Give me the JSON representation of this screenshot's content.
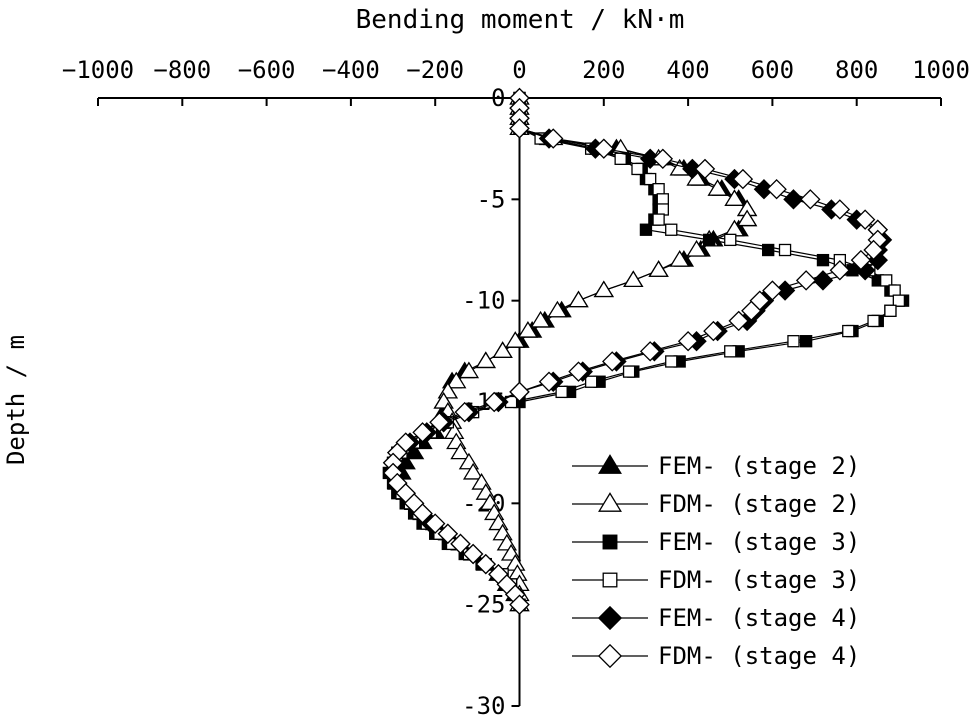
{
  "chart_data": {
    "type": "line",
    "title": "",
    "xlabel": "Bending moment / kN·m",
    "ylabel": "Depth / m",
    "x_axis_position": "top",
    "xlim": [
      -1000,
      1000
    ],
    "ylim": [
      -30,
      0
    ],
    "x_ticks": [
      -1000,
      -800,
      -600,
      -400,
      -200,
      0,
      200,
      400,
      600,
      800,
      1000
    ],
    "x_tick_labels": [
      "−1000",
      "−800",
      "−600",
      "−400",
      "−200",
      "0",
      "200",
      "400",
      "600",
      "800",
      "1000"
    ],
    "y_ticks": [
      0,
      -5,
      -10,
      -15,
      -20,
      -25,
      -30
    ],
    "y_tick_labels": [
      "0",
      "-5",
      "-10",
      "-15",
      "-20",
      "-25",
      "-30"
    ],
    "grid": false,
    "legend_position": "bottom-right",
    "series": [
      {
        "name": "FEM- (stage 2)",
        "marker": "triangle",
        "filled": true,
        "points": [
          [
            0,
            0
          ],
          [
            0,
            -0.5
          ],
          [
            0,
            -1
          ],
          [
            0,
            -1.5
          ],
          [
            70,
            -2
          ],
          [
            230,
            -2.5
          ],
          [
            340,
            -3
          ],
          [
            390,
            -3.5
          ],
          [
            430,
            -4
          ],
          [
            480,
            -4.5
          ],
          [
            520,
            -5
          ],
          [
            540,
            -5.5
          ],
          [
            540,
            -6
          ],
          [
            520,
            -6.5
          ],
          [
            460,
            -7
          ],
          [
            430,
            -7.5
          ],
          [
            390,
            -8
          ],
          [
            330,
            -8.5
          ],
          [
            270,
            -9
          ],
          [
            200,
            -9.5
          ],
          [
            140,
            -10
          ],
          [
            100,
            -10.5
          ],
          [
            60,
            -11
          ],
          [
            30,
            -11.5
          ],
          [
            0,
            -12
          ],
          [
            -40,
            -12.5
          ],
          [
            -80,
            -13
          ],
          [
            -130,
            -13.5
          ],
          [
            -160,
            -14
          ],
          [
            -170,
            -14.5
          ],
          [
            -180,
            -15
          ],
          [
            -180,
            -15.5
          ],
          [
            -190,
            -16
          ],
          [
            -200,
            -16.5
          ],
          [
            -230,
            -17
          ],
          [
            -250,
            -17.5
          ],
          [
            -270,
            -18
          ],
          [
            -280,
            -18.5
          ],
          [
            -290,
            -19
          ],
          [
            -270,
            -19.5
          ],
          [
            -250,
            -20
          ],
          [
            -230,
            -20.5
          ],
          [
            -200,
            -21
          ],
          [
            -170,
            -21.5
          ],
          [
            -140,
            -22
          ],
          [
            -110,
            -22.5
          ],
          [
            -80,
            -23
          ],
          [
            -50,
            -23.5
          ],
          [
            -30,
            -24
          ],
          [
            -10,
            -24.5
          ],
          [
            0,
            -25
          ]
        ]
      },
      {
        "name": "FDM- (stage 2)",
        "marker": "triangle",
        "filled": false,
        "points": [
          [
            0,
            0
          ],
          [
            0,
            -0.5
          ],
          [
            0,
            -1
          ],
          [
            0,
            -1.5
          ],
          [
            80,
            -2
          ],
          [
            240,
            -2.5
          ],
          [
            330,
            -3
          ],
          [
            380,
            -3.5
          ],
          [
            420,
            -4
          ],
          [
            470,
            -4.5
          ],
          [
            510,
            -5
          ],
          [
            540,
            -5.5
          ],
          [
            540,
            -6
          ],
          [
            510,
            -6.5
          ],
          [
            450,
            -7
          ],
          [
            420,
            -7.5
          ],
          [
            380,
            -8
          ],
          [
            330,
            -8.5
          ],
          [
            270,
            -9
          ],
          [
            200,
            -9.5
          ],
          [
            140,
            -10
          ],
          [
            90,
            -10.5
          ],
          [
            50,
            -11
          ],
          [
            20,
            -11.5
          ],
          [
            -10,
            -12
          ],
          [
            -40,
            -12.5
          ],
          [
            -80,
            -13
          ],
          [
            -120,
            -13.5
          ],
          [
            -150,
            -14
          ],
          [
            -170,
            -14.5
          ],
          [
            -180,
            -15
          ],
          [
            -170,
            -15.5
          ],
          [
            -160,
            -16
          ],
          [
            -155,
            -16.5
          ],
          [
            -150,
            -17
          ],
          [
            -140,
            -17.5
          ],
          [
            -120,
            -18
          ],
          [
            -110,
            -18.5
          ],
          [
            -90,
            -19
          ],
          [
            -80,
            -19.5
          ],
          [
            -70,
            -20
          ],
          [
            -60,
            -20.5
          ],
          [
            -50,
            -21
          ],
          [
            -40,
            -21.5
          ],
          [
            -30,
            -22
          ],
          [
            -20,
            -22.5
          ],
          [
            -10,
            -23
          ],
          [
            -5,
            -23.5
          ],
          [
            0,
            -24
          ],
          [
            0,
            -24.5
          ],
          [
            0,
            -25
          ]
        ]
      },
      {
        "name": "FEM- (stage 3)",
        "marker": "square",
        "filled": true,
        "points": [
          [
            0,
            0
          ],
          [
            0,
            -0.5
          ],
          [
            0,
            -1
          ],
          [
            0,
            -1.5
          ],
          [
            60,
            -2
          ],
          [
            180,
            -2.5
          ],
          [
            250,
            -3
          ],
          [
            290,
            -3.5
          ],
          [
            300,
            -4
          ],
          [
            320,
            -4.5
          ],
          [
            330,
            -5
          ],
          [
            330,
            -5.5
          ],
          [
            320,
            -6
          ],
          [
            300,
            -6.5
          ],
          [
            450,
            -7
          ],
          [
            590,
            -7.5
          ],
          [
            720,
            -8
          ],
          [
            790,
            -8.5
          ],
          [
            850,
            -9
          ],
          [
            880,
            -9.5
          ],
          [
            910,
            -10
          ],
          [
            880,
            -10.5
          ],
          [
            850,
            -11
          ],
          [
            790,
            -11.5
          ],
          [
            680,
            -12
          ],
          [
            520,
            -12.5
          ],
          [
            380,
            -13
          ],
          [
            270,
            -13.5
          ],
          [
            190,
            -14
          ],
          [
            120,
            -14.5
          ],
          [
            0,
            -15
          ],
          [
            -120,
            -15.5
          ],
          [
            -180,
            -16
          ],
          [
            -220,
            -16.5
          ],
          [
            -260,
            -17
          ],
          [
            -290,
            -17.5
          ],
          [
            -300,
            -18
          ],
          [
            -310,
            -18.5
          ],
          [
            -300,
            -19
          ],
          [
            -290,
            -19.5
          ],
          [
            -270,
            -20
          ],
          [
            -250,
            -20.5
          ],
          [
            -230,
            -21
          ],
          [
            -200,
            -21.5
          ],
          [
            -170,
            -22
          ],
          [
            -130,
            -22.5
          ],
          [
            -90,
            -23
          ],
          [
            -50,
            -23.5
          ],
          [
            -20,
            -24
          ],
          [
            -10,
            -24.5
          ],
          [
            0,
            -25
          ]
        ]
      },
      {
        "name": "FDM- (stage 3)",
        "marker": "square",
        "filled": false,
        "points": [
          [
            0,
            0
          ],
          [
            0,
            -0.5
          ],
          [
            0,
            -1
          ],
          [
            0,
            -1.5
          ],
          [
            50,
            -2
          ],
          [
            170,
            -2.5
          ],
          [
            240,
            -3
          ],
          [
            280,
            -3.5
          ],
          [
            310,
            -4
          ],
          [
            330,
            -4.5
          ],
          [
            340,
            -5
          ],
          [
            340,
            -5.5
          ],
          [
            330,
            -6
          ],
          [
            360,
            -6.5
          ],
          [
            500,
            -7
          ],
          [
            630,
            -7.5
          ],
          [
            760,
            -8
          ],
          [
            830,
            -8.5
          ],
          [
            870,
            -9
          ],
          [
            890,
            -9.5
          ],
          [
            900,
            -10
          ],
          [
            880,
            -10.5
          ],
          [
            840,
            -11
          ],
          [
            780,
            -11.5
          ],
          [
            650,
            -12
          ],
          [
            500,
            -12.5
          ],
          [
            360,
            -13
          ],
          [
            260,
            -13.5
          ],
          [
            170,
            -14
          ],
          [
            100,
            -14.5
          ],
          [
            -20,
            -15
          ],
          [
            -110,
            -15.5
          ],
          [
            -170,
            -16
          ],
          [
            -210,
            -16.5
          ],
          [
            -250,
            -17
          ],
          [
            -280,
            -17.5
          ],
          [
            -300,
            -18
          ],
          [
            -300,
            -18.5
          ],
          [
            -290,
            -19
          ],
          [
            -280,
            -19.5
          ],
          [
            -260,
            -20
          ],
          [
            -240,
            -20.5
          ],
          [
            -220,
            -21
          ],
          [
            -190,
            -21.5
          ],
          [
            -160,
            -22
          ],
          [
            -120,
            -22.5
          ],
          [
            -80,
            -23
          ],
          [
            -40,
            -23.5
          ],
          [
            -20,
            -24
          ],
          [
            -10,
            -24.5
          ],
          [
            0,
            -25
          ]
        ]
      },
      {
        "name": "FEM- (stage 4)",
        "marker": "diamond",
        "filled": true,
        "points": [
          [
            0,
            0
          ],
          [
            0,
            -0.5
          ],
          [
            0,
            -1
          ],
          [
            0,
            -1.5
          ],
          [
            70,
            -2
          ],
          [
            180,
            -2.5
          ],
          [
            310,
            -3
          ],
          [
            410,
            -3.5
          ],
          [
            510,
            -4
          ],
          [
            580,
            -4.5
          ],
          [
            650,
            -5
          ],
          [
            740,
            -5.5
          ],
          [
            800,
            -6
          ],
          [
            850,
            -6.5
          ],
          [
            860,
            -7
          ],
          [
            850,
            -7.5
          ],
          [
            850,
            -8
          ],
          [
            820,
            -8.5
          ],
          [
            720,
            -9
          ],
          [
            630,
            -9.5
          ],
          [
            580,
            -10
          ],
          [
            560,
            -10.5
          ],
          [
            540,
            -11
          ],
          [
            470,
            -11.5
          ],
          [
            420,
            -12
          ],
          [
            320,
            -12.5
          ],
          [
            230,
            -13
          ],
          [
            150,
            -13.5
          ],
          [
            80,
            -14
          ],
          [
            0,
            -14.5
          ],
          [
            -50,
            -15
          ],
          [
            -120,
            -15.5
          ],
          [
            -180,
            -16
          ],
          [
            -220,
            -16.5
          ],
          [
            -260,
            -17
          ],
          [
            -290,
            -17.5
          ],
          [
            -300,
            -18
          ],
          [
            -300,
            -18.5
          ],
          [
            -290,
            -19
          ],
          [
            -270,
            -19.5
          ],
          [
            -250,
            -20
          ],
          [
            -230,
            -20.5
          ],
          [
            -210,
            -21
          ],
          [
            -170,
            -21.5
          ],
          [
            -140,
            -22
          ],
          [
            -110,
            -22.5
          ],
          [
            -80,
            -23
          ],
          [
            -50,
            -23.5
          ],
          [
            -30,
            -24
          ],
          [
            -10,
            -24.5
          ],
          [
            0,
            -25
          ]
        ]
      },
      {
        "name": "FDM- (stage 4)",
        "marker": "diamond",
        "filled": false,
        "points": [
          [
            0,
            0
          ],
          [
            0,
            -0.5
          ],
          [
            0,
            -1
          ],
          [
            0,
            -1.5
          ],
          [
            80,
            -2
          ],
          [
            200,
            -2.5
          ],
          [
            340,
            -3
          ],
          [
            440,
            -3.5
          ],
          [
            530,
            -4
          ],
          [
            610,
            -4.5
          ],
          [
            690,
            -5
          ],
          [
            760,
            -5.5
          ],
          [
            820,
            -6
          ],
          [
            850,
            -6.5
          ],
          [
            850,
            -7
          ],
          [
            840,
            -7.5
          ],
          [
            810,
            -8
          ],
          [
            760,
            -8.5
          ],
          [
            680,
            -9
          ],
          [
            600,
            -9.5
          ],
          [
            570,
            -10
          ],
          [
            550,
            -10.5
          ],
          [
            520,
            -11
          ],
          [
            460,
            -11.5
          ],
          [
            400,
            -12
          ],
          [
            310,
            -12.5
          ],
          [
            220,
            -13
          ],
          [
            140,
            -13.5
          ],
          [
            70,
            -14
          ],
          [
            0,
            -14.5
          ],
          [
            -60,
            -15
          ],
          [
            -130,
            -15.5
          ],
          [
            -190,
            -16
          ],
          [
            -230,
            -16.5
          ],
          [
            -270,
            -17
          ],
          [
            -290,
            -17.5
          ],
          [
            -300,
            -18
          ],
          [
            -300,
            -18.5
          ],
          [
            -290,
            -19
          ],
          [
            -270,
            -19.5
          ],
          [
            -250,
            -20
          ],
          [
            -230,
            -20.5
          ],
          [
            -200,
            -21
          ],
          [
            -170,
            -21.5
          ],
          [
            -140,
            -22
          ],
          [
            -110,
            -22.5
          ],
          [
            -80,
            -23
          ],
          [
            -50,
            -23.5
          ],
          [
            -30,
            -24
          ],
          [
            -10,
            -24.5
          ],
          [
            0,
            -25
          ]
        ]
      }
    ]
  }
}
